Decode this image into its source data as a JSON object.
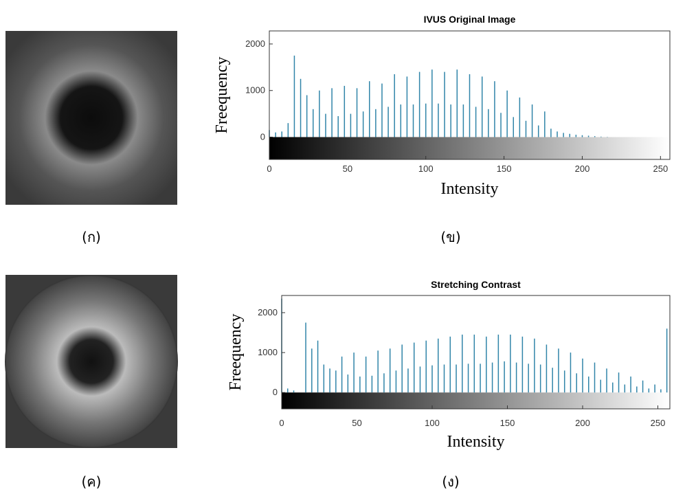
{
  "chart_data": [
    {
      "type": "bar",
      "title": "IVUS Original Image",
      "x_label": "Intensity",
      "y_label": "Freequency",
      "color": "#2f84a8",
      "x": [
        0,
        4,
        8,
        12,
        16,
        20,
        24,
        28,
        32,
        36,
        40,
        44,
        48,
        52,
        56,
        60,
        64,
        68,
        72,
        76,
        80,
        84,
        88,
        92,
        96,
        100,
        104,
        108,
        112,
        116,
        120,
        124,
        128,
        132,
        136,
        140,
        144,
        148,
        152,
        156,
        160,
        164,
        168,
        172,
        176,
        180,
        184,
        188,
        192,
        196,
        200,
        204,
        208,
        212,
        216,
        220,
        224,
        228,
        232,
        236,
        240,
        244,
        248,
        252
      ],
      "values": [
        150,
        100,
        120,
        300,
        1750,
        1250,
        900,
        600,
        1000,
        500,
        1050,
        450,
        1100,
        500,
        1050,
        550,
        1200,
        600,
        1150,
        650,
        1350,
        700,
        1300,
        700,
        1400,
        720,
        1450,
        720,
        1400,
        700,
        1450,
        700,
        1350,
        650,
        1300,
        600,
        1200,
        520,
        1000,
        430,
        850,
        350,
        700,
        250,
        550,
        180,
        120,
        90,
        70,
        50,
        40,
        30,
        20,
        10,
        5,
        0,
        0,
        0,
        0,
        0,
        0,
        0,
        0,
        0
      ],
      "xlim": [
        0,
        256
      ],
      "ylim": [
        -480,
        2280
      ],
      "xticks": [
        0,
        50,
        100,
        150,
        200,
        250
      ],
      "yticks": [
        0,
        1000,
        2000
      ]
    },
    {
      "type": "bar",
      "title": "Stretching Contrast",
      "x_label": "Intensity",
      "y_label": "Freequency",
      "color": "#2f84a8",
      "x": [
        0,
        4,
        8,
        12,
        16,
        20,
        24,
        28,
        32,
        36,
        40,
        44,
        48,
        52,
        56,
        60,
        64,
        68,
        72,
        76,
        80,
        84,
        88,
        92,
        96,
        100,
        104,
        108,
        112,
        116,
        120,
        124,
        128,
        132,
        136,
        140,
        144,
        148,
        152,
        156,
        160,
        164,
        168,
        172,
        176,
        180,
        184,
        188,
        192,
        196,
        200,
        204,
        208,
        212,
        216,
        220,
        224,
        228,
        232,
        236,
        240,
        244,
        248,
        252,
        256
      ],
      "values": [
        2350,
        100,
        50,
        0,
        1750,
        1100,
        1300,
        700,
        600,
        550,
        900,
        450,
        1000,
        400,
        900,
        420,
        1050,
        480,
        1100,
        550,
        1200,
        600,
        1250,
        650,
        1300,
        680,
        1350,
        700,
        1400,
        700,
        1450,
        720,
        1450,
        720,
        1400,
        750,
        1450,
        780,
        1450,
        750,
        1400,
        720,
        1350,
        700,
        1200,
        620,
        1100,
        550,
        1000,
        480,
        850,
        400,
        750,
        320,
        600,
        250,
        500,
        200,
        400,
        150,
        300,
        100,
        200,
        80,
        1600
      ],
      "xlim": [
        0,
        258
      ],
      "ylim": [
        -410,
        2430
      ],
      "xticks": [
        0,
        50,
        100,
        150,
        200,
        250
      ],
      "yticks": [
        0,
        1000,
        2000
      ]
    }
  ],
  "captions": [
    "(ก)",
    "(ข)",
    "(ค)",
    "(ง)"
  ]
}
